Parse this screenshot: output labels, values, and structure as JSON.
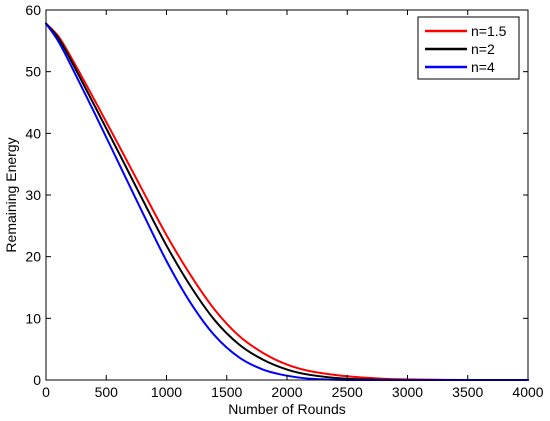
{
  "chart_data": {
    "type": "line",
    "xlabel": "Number of Rounds",
    "ylabel": "Remaining Energy",
    "xlim": [
      0,
      4000
    ],
    "ylim": [
      0,
      60
    ],
    "xticks": [
      0,
      500,
      1000,
      1500,
      2000,
      2500,
      3000,
      3500,
      4000
    ],
    "yticks": [
      0,
      10,
      20,
      30,
      40,
      50,
      60
    ],
    "grid": false,
    "legend_position": "top-right",
    "series": [
      {
        "name": "n=1.5",
        "color": "#ff0000",
        "x": [
          0,
          100,
          200,
          400,
          600,
          800,
          1000,
          1200,
          1400,
          1600,
          1800,
          2000,
          2200,
          2500,
          2800,
          3000,
          3500,
          4000
        ],
        "y": [
          57.8,
          55.8,
          52.6,
          45.5,
          38.2,
          30.8,
          23.5,
          17.0,
          11.4,
          7.2,
          4.4,
          2.5,
          1.4,
          0.6,
          0.2,
          0.1,
          0.0,
          0.0
        ]
      },
      {
        "name": "n=2",
        "color": "#000000",
        "x": [
          0,
          100,
          200,
          400,
          600,
          800,
          1000,
          1200,
          1400,
          1600,
          1800,
          2000,
          2200,
          2500,
          2800,
          3000,
          3500,
          4000
        ],
        "y": [
          57.8,
          55.5,
          52.1,
          44.6,
          37.0,
          29.3,
          21.8,
          15.2,
          9.7,
          5.8,
          3.3,
          1.7,
          0.8,
          0.2,
          0.05,
          0.0,
          0.0,
          0.0
        ]
      },
      {
        "name": "n=4",
        "color": "#0000ff",
        "x": [
          0,
          100,
          200,
          400,
          600,
          800,
          1000,
          1200,
          1400,
          1600,
          1800,
          2000,
          2200,
          2400,
          2600,
          3000,
          3500,
          4000
        ],
        "y": [
          57.8,
          55.0,
          51.3,
          43.4,
          35.3,
          27.2,
          19.3,
          12.5,
          7.2,
          3.7,
          1.7,
          0.7,
          0.2,
          0.05,
          0.0,
          0.0,
          0.0,
          0.0
        ]
      }
    ]
  }
}
